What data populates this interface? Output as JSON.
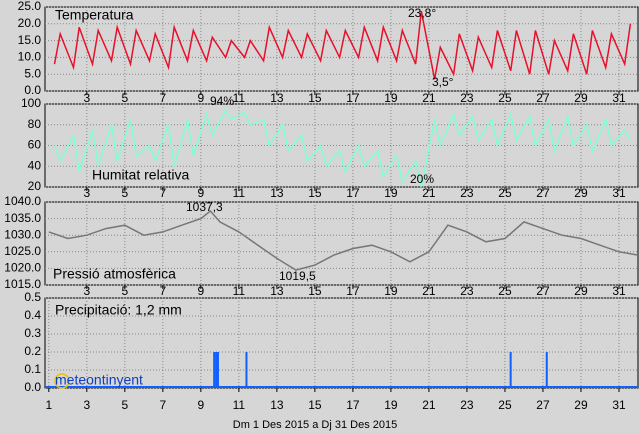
{
  "chart_data": [
    {
      "type": "line",
      "title": "Temperatura",
      "color": "#e8102a",
      "x": [
        1.3,
        1.6,
        2.3,
        2.6,
        3.3,
        3.6,
        4.3,
        4.6,
        5.3,
        5.6,
        6.3,
        6.6,
        7.3,
        7.6,
        8.3,
        8.6,
        9.3,
        9.6,
        10.3,
        10.6,
        11.3,
        11.6,
        12.3,
        12.6,
        13.3,
        13.6,
        14.3,
        14.6,
        15.3,
        15.6,
        16.3,
        16.6,
        17.3,
        17.6,
        18.3,
        18.6,
        19.3,
        19.6,
        20.3,
        20.6,
        21.3,
        21.6,
        22.3,
        22.6,
        23.3,
        23.6,
        24.3,
        24.6,
        25.3,
        25.6,
        26.3,
        26.6,
        27.3,
        27.6,
        28.3,
        28.6,
        29.3,
        29.6,
        30.3,
        30.6,
        31.3,
        31.6
      ],
      "values": [
        8,
        17,
        7,
        19,
        8,
        18,
        9,
        19,
        8,
        18,
        9,
        17,
        7,
        19,
        9,
        18,
        9,
        16,
        10,
        15,
        10,
        15,
        9,
        19,
        10,
        18,
        10,
        17,
        9,
        18,
        10,
        18,
        10,
        19,
        9,
        19,
        9,
        18,
        8,
        23.8,
        3.5,
        13,
        5,
        17,
        6,
        16,
        7,
        18,
        6,
        18,
        5,
        18,
        5,
        15,
        6,
        17,
        5,
        18,
        7,
        17,
        8,
        20
      ],
      "annotations": [
        "23,8°",
        "3,5°"
      ],
      "xlim": [
        0.8,
        32
      ],
      "xticks": [
        3,
        5,
        7,
        9,
        11,
        13,
        15,
        17,
        19,
        21,
        23,
        25,
        27,
        29,
        31
      ],
      "ylim": [
        0,
        25
      ],
      "yticks": [
        {
          "value": 0,
          "label": "0.0"
        },
        {
          "value": 5,
          "label": "5.0"
        },
        {
          "value": 10,
          "label": "10.0"
        },
        {
          "value": 15,
          "label": "15.0"
        },
        {
          "value": 20,
          "label": "20.0"
        },
        {
          "value": 25,
          "label": "25.0"
        }
      ],
      "grid": true
    },
    {
      "type": "line",
      "title": "Humitat relativa",
      "color": "#7fffd4",
      "x": [
        1.3,
        1.6,
        2.3,
        2.6,
        3.3,
        3.6,
        4.3,
        4.6,
        5.3,
        5.6,
        6.3,
        6.6,
        7.3,
        7.6,
        8.3,
        8.6,
        9.3,
        9.6,
        10.3,
        10.6,
        11.3,
        11.6,
        12.3,
        12.6,
        13.3,
        13.6,
        14.3,
        14.6,
        15.3,
        15.6,
        16.3,
        16.6,
        17.3,
        17.6,
        18.3,
        18.6,
        19.3,
        19.6,
        20.3,
        20.6,
        21.3,
        21.6,
        22.3,
        22.6,
        23.3,
        23.6,
        24.3,
        24.6,
        25.3,
        25.6,
        26.3,
        26.6,
        27.3,
        27.6,
        28.3,
        28.6,
        29.3,
        29.6,
        30.3,
        30.6,
        31.3,
        31.6
      ],
      "values": [
        60,
        45,
        70,
        35,
        75,
        40,
        80,
        45,
        85,
        50,
        60,
        45,
        80,
        40,
        85,
        50,
        90,
        70,
        94,
        85,
        92,
        80,
        85,
        60,
        80,
        55,
        70,
        45,
        60,
        40,
        55,
        35,
        60,
        40,
        55,
        30,
        50,
        25,
        45,
        20,
        85,
        60,
        90,
        70,
        88,
        65,
        85,
        60,
        90,
        65,
        88,
        60,
        85,
        55,
        88,
        60,
        80,
        55,
        85,
        60,
        75,
        65
      ],
      "annotations": [
        "94%",
        "20%"
      ],
      "xlim": [
        0.8,
        32
      ],
      "xticks": [
        3,
        5,
        7,
        9,
        11,
        13,
        15,
        17,
        19,
        21,
        23,
        25,
        27,
        29,
        31
      ],
      "ylim": [
        20,
        100
      ],
      "yticks": [
        20,
        40,
        60,
        80,
        100
      ],
      "grid": true
    },
    {
      "type": "line",
      "title": "Pressió atmosfèrica",
      "color": "#777777",
      "x": [
        1,
        2,
        3,
        4,
        5,
        6,
        7,
        8,
        9,
        9.5,
        10,
        11,
        12,
        13,
        14,
        15,
        16,
        17,
        18,
        19,
        20,
        21,
        22,
        23,
        24,
        25,
        26,
        27,
        28,
        29,
        30,
        31,
        32
      ],
      "values": [
        1031,
        1029,
        1030,
        1032,
        1033,
        1030,
        1031,
        1033,
        1035,
        1037.3,
        1034,
        1031,
        1027,
        1023,
        1019.5,
        1021,
        1024,
        1026,
        1027,
        1025,
        1022,
        1025,
        1033,
        1031,
        1028,
        1029,
        1034,
        1032,
        1030,
        1029,
        1027,
        1025,
        1024
      ],
      "annotations": [
        "1037,3",
        "1019,5"
      ],
      "xlim": [
        0.8,
        32
      ],
      "xticks": [
        3,
        5,
        7,
        9,
        11,
        13,
        15,
        17,
        19,
        21,
        23,
        25,
        27,
        29,
        31
      ],
      "ylim": [
        1015,
        1040
      ],
      "yticks": [
        {
          "value": 1015,
          "label": "1015.0"
        },
        {
          "value": 1020,
          "label": "1020.0"
        },
        {
          "value": 1025,
          "label": "1025.0"
        },
        {
          "value": 1030,
          "label": "1030.0"
        },
        {
          "value": 1035,
          "label": "1035.0"
        },
        {
          "value": 1040,
          "label": "1040.0"
        }
      ],
      "grid": true
    },
    {
      "type": "bar",
      "title": "Precipitació: 1,2 mm",
      "color": "#1060ff",
      "x": [
        9.7,
        9.8,
        9.9,
        11.4,
        25.3,
        27.2
      ],
      "values": [
        0.2,
        0.2,
        0.2,
        0.2,
        0.2,
        0.2
      ],
      "annotations": [],
      "xlim": [
        0.8,
        32
      ],
      "xticks": [
        1,
        3,
        5,
        7,
        9,
        11,
        13,
        15,
        17,
        19,
        21,
        23,
        25,
        27,
        29,
        31
      ],
      "ylim": [
        0,
        0.5
      ],
      "yticks": [
        {
          "value": 0,
          "label": "0.0"
        },
        0.1,
        0.2,
        0.3,
        0.4,
        0.5
      ],
      "grid": true
    }
  ],
  "watermark": "meteontinyent",
  "footer": "Dm 1 Des 2015  a  Dj 31 Des 2015"
}
